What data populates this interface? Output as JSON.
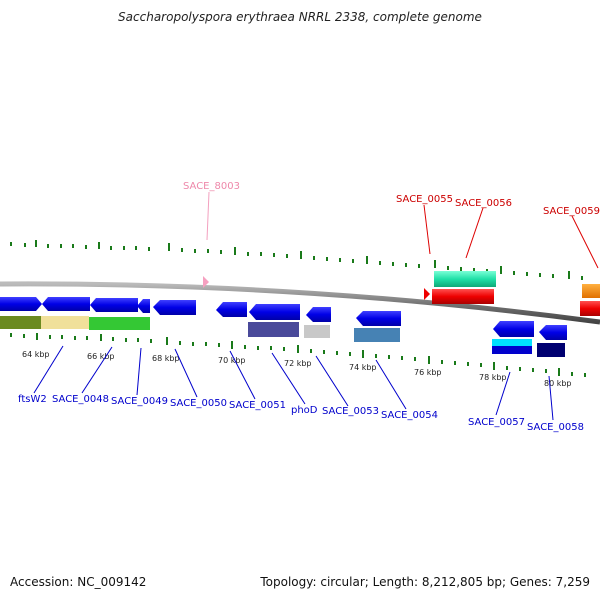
{
  "title": "Saccharopolyspora erythraea NRRL 2338, complete genome",
  "footer": {
    "accession": "Accession: NC_009142",
    "stats": "Topology: circular; Length: 8,212,805 bp; Genes: 7,259"
  },
  "ticks": [
    "64 kbp",
    "66 kbp",
    "68 kbp",
    "70 kbp",
    "72 kbp",
    "74 kbp",
    "76 kbp",
    "78 kbp",
    "80 kbp"
  ],
  "genes": {
    "ftsW2": "ftsW2",
    "SACE_0048": "SACE_0048",
    "SACE_0049": "SACE_0049",
    "SACE_0050": "SACE_0050",
    "SACE_0051": "SACE_0051",
    "phoD": "phoD",
    "SACE_0053": "SACE_0053",
    "SACE_0054": "SACE_0054",
    "SACE_0057": "SACE_0057",
    "SACE_0058": "SACE_0058",
    "SACE_8003": "SACE_8003",
    "SACE_0055": "SACE_0055",
    "SACE_0056": "SACE_0056",
    "SACE_0059": "SACE_0059"
  },
  "colors": {
    "forward_gene": "#0000e0",
    "rna_label": "#cc0000",
    "pseudo_label": "#ee88aa",
    "tick": "#1a7a1a",
    "backbone": "#888888"
  }
}
